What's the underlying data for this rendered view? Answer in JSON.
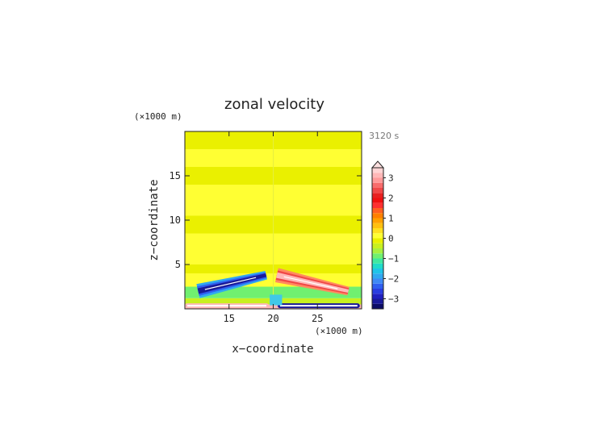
{
  "chart_data": {
    "type": "heatmap",
    "title": "zonal velocity",
    "time_label": "3120 s",
    "xlabel": "x−coordinate",
    "ylabel": "z−coordinate",
    "x_unit": "(×1000 m)",
    "y_unit": "(×1000 m)",
    "xlim": [
      10,
      30
    ],
    "ylim": [
      0,
      20
    ],
    "x_ticks": [
      15,
      20,
      25
    ],
    "y_ticks": [
      5,
      10,
      15
    ],
    "x_tick_labels": [
      "15",
      "20",
      "25"
    ],
    "y_tick_labels": [
      "5",
      "10",
      "15"
    ],
    "colorbar": {
      "levels": [
        -3.5,
        -3.25,
        -3,
        -2.75,
        -2.5,
        -2.25,
        -2,
        -1.75,
        -1.5,
        -1.25,
        -1,
        -0.75,
        -0.5,
        -0.25,
        0,
        0.25,
        0.5,
        0.75,
        1,
        1.25,
        1.5,
        1.75,
        2,
        2.25,
        2.5,
        2.75,
        3,
        3.25,
        3.5
      ],
      "colors": [
        "#0d0d66",
        "#1a1a99",
        "#2020c0",
        "#2a3de0",
        "#2f5ff0",
        "#3f8af5",
        "#30a8f0",
        "#20c4e8",
        "#20dcc8",
        "#40e8a0",
        "#70f070",
        "#a8f040",
        "#c8f020",
        "#eaf000",
        "#ffff33",
        "#ffe020",
        "#ffc010",
        "#ffa000",
        "#ff8000",
        "#ff6020",
        "#ff3030",
        "#f01010",
        "#e82020",
        "#f04848",
        "#f86c6c",
        "#ff9a9a",
        "#ffb8b8",
        "#ffd4d4"
      ],
      "tick_values": [
        -3,
        -2,
        -1,
        0,
        1,
        2,
        3
      ],
      "tick_labels": [
        "−3",
        "−2",
        "−1",
        "0",
        "1",
        "2",
        "3"
      ],
      "extend": "max"
    },
    "bands": [
      {
        "z": [
          0,
          0.5
        ],
        "value": 3.0
      },
      {
        "z": [
          0.5,
          1.2
        ],
        "value": -0.3
      },
      {
        "z": [
          1.2,
          2.5
        ],
        "value": -0.8
      },
      {
        "z": [
          2.5,
          4
        ],
        "value": 0.2
      },
      {
        "z": [
          4,
          5
        ],
        "value": -0.1
      },
      {
        "z": [
          5,
          8.5
        ],
        "value": 0.2
      },
      {
        "z": [
          8.5,
          10.5
        ],
        "value": -0.1
      },
      {
        "z": [
          10.5,
          14
        ],
        "value": 0.2
      },
      {
        "z": [
          14,
          16
        ],
        "value": -0.1
      },
      {
        "z": [
          16,
          18
        ],
        "value": 0.2
      },
      {
        "z": [
          18,
          20
        ],
        "value": -0.1
      }
    ],
    "features": [
      {
        "name": "negative-jet",
        "x": [
          11.5,
          19.2
        ],
        "z": [
          2.0,
          3.8
        ],
        "value": -3.2
      },
      {
        "name": "positive-jet",
        "x": [
          20.4,
          28.5
        ],
        "z": [
          3.8,
          2.0
        ],
        "value": 3.2
      },
      {
        "name": "surface-negative",
        "x": [
          20.5,
          29.8
        ],
        "z": [
          0.1,
          0.1
        ],
        "value": -3.2
      },
      {
        "name": "surface-positive",
        "x": [
          10.0,
          19.5
        ],
        "z": [
          0.15,
          0.15
        ],
        "value": 3.0
      }
    ]
  }
}
